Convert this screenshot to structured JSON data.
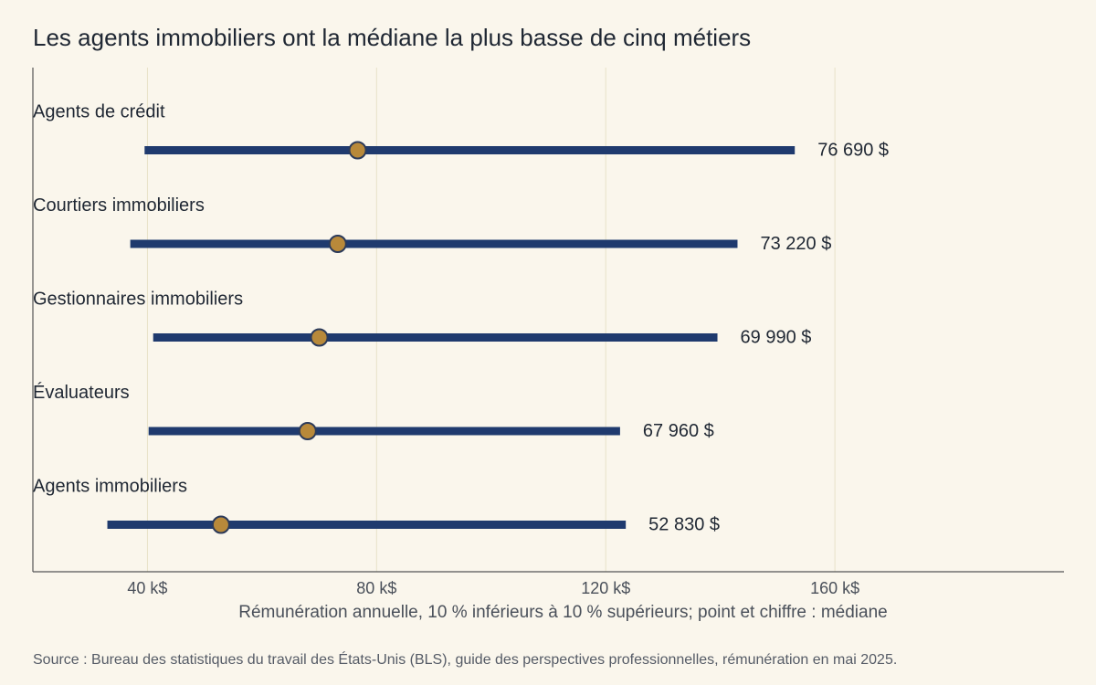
{
  "chart_data": {
    "type": "range-dot",
    "title": "Les agents immobiliers ont la médiane la plus basse de cinq métiers",
    "xlabel": "Rémunération annuelle, 10 % inférieurs à 10 % supérieurs; point et chiffre : médiane",
    "xlim": [
      20000,
      200000
    ],
    "xticks": [
      40000,
      80000,
      120000,
      160000
    ],
    "xtick_labels": [
      "40 k$",
      "80 k$",
      "120 k$",
      "160 k$"
    ],
    "grid": "vertical",
    "categories": [
      "Agents de crédit",
      "Courtiers immobiliers",
      "Gestionnaires immobiliers",
      "Évaluateurs",
      "Agents immobiliers"
    ],
    "low": [
      39500,
      37000,
      41000,
      40200,
      33000
    ],
    "high": [
      153000,
      143000,
      139500,
      122500,
      123500
    ],
    "median": [
      76690,
      73220,
      69990,
      67960,
      52830
    ],
    "median_labels": [
      "76 690 $",
      "73 220 $",
      "69 990 $",
      "67 960 $",
      "52 830 $"
    ],
    "colors": {
      "range": "#1f3a6e",
      "median": "#b8893a",
      "grid": "#e8e2c8",
      "axis": "#555555"
    },
    "source": "Source : Bureau des statistiques du travail des États-Unis (BLS), guide des perspectives professionnelles, rémunération en mai 2025."
  }
}
